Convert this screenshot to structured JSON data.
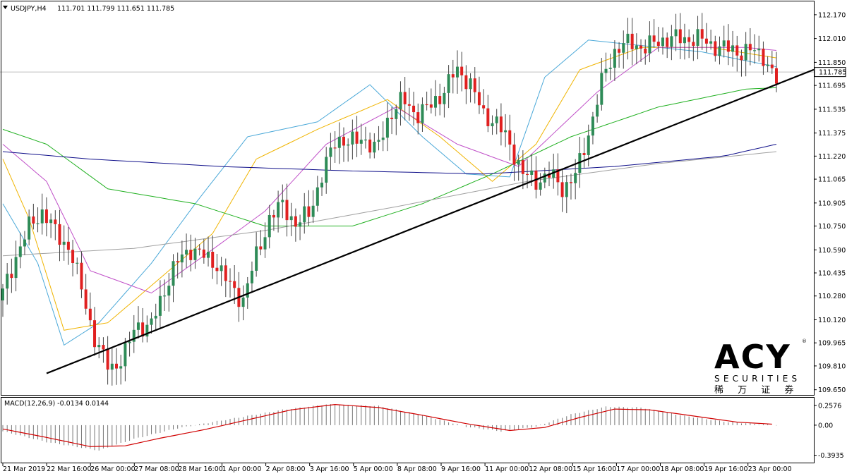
{
  "header": {
    "symbol": "USDJPY,H4",
    "ohlc": "111.701 111.799 111.651 111.785"
  },
  "macd": {
    "label": "MACD(12,26,9) -0.0134 0.0144",
    "ticks": [
      "0.2576",
      "0.00",
      "-0.3935"
    ]
  },
  "logo": {
    "brand": "ACY",
    "sub": "SECURITIES",
    "cn": "稀 万 证 券",
    "reg": "®",
    "brand_color": "#16255c"
  },
  "current_price": "111.785",
  "colors": {
    "bull": "#2e8b57",
    "bear": "#e02020",
    "ma5": "#4aa8d8",
    "ma10": "#f0b400",
    "ma20": "#c050c8",
    "ma60": "#20b020",
    "ma120": "#10108a",
    "ma200": "#a0a0a0",
    "macd_signal": "#d00000",
    "trendline": "#000000"
  },
  "chart_data": {
    "type": "candlestick",
    "symbol": "USDJPY",
    "timeframe": "H4",
    "y_ticks": [
      "112.170",
      "112.010",
      "111.850",
      "111.695",
      "111.535",
      "111.375",
      "111.220",
      "111.065",
      "110.905",
      "110.750",
      "110.590",
      "110.435",
      "110.280",
      "110.120",
      "109.965",
      "109.810",
      "109.650"
    ],
    "ylim": [
      109.62,
      112.25
    ],
    "x_ticks": [
      "21 Mar 2019",
      "22 Mar 16:00",
      "26 Mar 00:00",
      "27 Mar 08:00",
      "28 Mar 16:00",
      "1 Apr 00:00",
      "2 Apr 08:00",
      "3 Apr 16:00",
      "5 Apr 00:00",
      "8 Apr 08:00",
      "9 Apr 16:00",
      "11 Apr 00:00",
      "12 Apr 08:00",
      "15 Apr 16:00",
      "17 Apr 00:00",
      "18 Apr 08:00",
      "19 Apr 16:00",
      "23 Apr 00:00"
    ],
    "close_path": [
      110.3,
      110.55,
      110.75,
      110.85,
      110.7,
      110.6,
      110.3,
      109.95,
      109.8,
      109.85,
      110.1,
      110.05,
      110.3,
      110.5,
      110.6,
      110.55,
      110.5,
      110.35,
      110.25,
      110.55,
      110.8,
      110.9,
      110.75,
      110.85,
      111.1,
      111.35,
      111.3,
      111.35,
      111.25,
      111.5,
      111.6,
      111.5,
      111.55,
      111.65,
      111.8,
      111.72,
      111.5,
      111.45,
      111.3,
      111.1,
      111.05,
      111.1,
      111.0,
      111.1,
      111.4,
      111.75,
      111.95,
      111.98,
      111.95,
      111.98,
      112.02,
      112.0,
      112.02,
      111.97,
      111.95,
      111.92,
      111.93,
      111.9,
      111.72
    ],
    "candle_count": 178,
    "trendline": [
      [
        0,
        109.76
      ],
      [
        177,
        111.73
      ]
    ],
    "moving_averages": [
      {
        "color": "ma5",
        "points": [
          [
            0,
            110.9
          ],
          [
            8,
            110.5
          ],
          [
            14,
            109.95
          ],
          [
            22,
            110.1
          ],
          [
            34,
            110.5
          ],
          [
            44,
            110.9
          ],
          [
            56,
            111.35
          ],
          [
            72,
            111.45
          ],
          [
            84,
            111.7
          ],
          [
            96,
            111.35
          ],
          [
            106,
            111.1
          ],
          [
            116,
            111.08
          ],
          [
            124,
            111.75
          ],
          [
            134,
            112.0
          ],
          [
            160,
            111.92
          ],
          [
            177,
            111.82
          ]
        ]
      },
      {
        "color": "ma10",
        "points": [
          [
            0,
            111.2
          ],
          [
            6,
            110.8
          ],
          [
            14,
            110.05
          ],
          [
            24,
            110.1
          ],
          [
            36,
            110.4
          ],
          [
            48,
            110.7
          ],
          [
            58,
            111.2
          ],
          [
            72,
            111.4
          ],
          [
            88,
            111.6
          ],
          [
            100,
            111.35
          ],
          [
            112,
            111.05
          ],
          [
            122,
            111.3
          ],
          [
            132,
            111.8
          ],
          [
            146,
            111.95
          ],
          [
            162,
            111.95
          ],
          [
            177,
            111.88
          ]
        ]
      },
      {
        "color": "ma20",
        "points": [
          [
            0,
            111.3
          ],
          [
            10,
            111.05
          ],
          [
            20,
            110.45
          ],
          [
            34,
            110.3
          ],
          [
            46,
            110.55
          ],
          [
            60,
            110.85
          ],
          [
            74,
            111.3
          ],
          [
            90,
            111.55
          ],
          [
            104,
            111.3
          ],
          [
            118,
            111.15
          ],
          [
            136,
            111.65
          ],
          [
            150,
            111.95
          ],
          [
            170,
            111.95
          ],
          [
            177,
            111.93
          ]
        ]
      },
      {
        "color": "ma60",
        "points": [
          [
            0,
            111.4
          ],
          [
            10,
            111.3
          ],
          [
            24,
            111.0
          ],
          [
            44,
            110.9
          ],
          [
            60,
            110.75
          ],
          [
            80,
            110.75
          ],
          [
            96,
            110.9
          ],
          [
            112,
            111.1
          ],
          [
            130,
            111.35
          ],
          [
            150,
            111.55
          ],
          [
            170,
            111.67
          ],
          [
            177,
            111.68
          ]
        ]
      },
      {
        "color": "ma120",
        "points": [
          [
            0,
            111.25
          ],
          [
            20,
            111.2
          ],
          [
            50,
            111.15
          ],
          [
            80,
            111.12
          ],
          [
            110,
            111.1
          ],
          [
            140,
            111.15
          ],
          [
            165,
            111.22
          ],
          [
            177,
            111.3
          ]
        ]
      },
      {
        "color": "ma200",
        "points": [
          [
            0,
            110.55
          ],
          [
            30,
            110.6
          ],
          [
            60,
            110.72
          ],
          [
            90,
            110.88
          ],
          [
            120,
            111.05
          ],
          [
            150,
            111.17
          ],
          [
            177,
            111.25
          ]
        ]
      }
    ],
    "macd": {
      "ylim": [
        -0.48,
        0.34
      ],
      "histogram_path": [
        [
          0,
          -0.08
        ],
        [
          10,
          -0.22
        ],
        [
          22,
          -0.33
        ],
        [
          30,
          -0.18
        ],
        [
          40,
          -0.04
        ],
        [
          52,
          0.08
        ],
        [
          64,
          0.2
        ],
        [
          74,
          0.27
        ],
        [
          86,
          0.25
        ],
        [
          96,
          0.13
        ],
        [
          106,
          -0.02
        ],
        [
          114,
          -0.08
        ],
        [
          122,
          -0.02
        ],
        [
          130,
          0.14
        ],
        [
          138,
          0.24
        ],
        [
          146,
          0.23
        ],
        [
          156,
          0.12
        ],
        [
          166,
          0.04
        ],
        [
          177,
          0.0
        ]
      ],
      "signal_path": [
        [
          0,
          -0.05
        ],
        [
          10,
          -0.16
        ],
        [
          20,
          -0.28
        ],
        [
          28,
          -0.27
        ],
        [
          36,
          -0.17
        ],
        [
          46,
          -0.06
        ],
        [
          56,
          0.07
        ],
        [
          66,
          0.2
        ],
        [
          76,
          0.27
        ],
        [
          86,
          0.23
        ],
        [
          96,
          0.13
        ],
        [
          106,
          0.02
        ],
        [
          116,
          -0.07
        ],
        [
          124,
          -0.03
        ],
        [
          132,
          0.1
        ],
        [
          140,
          0.21
        ],
        [
          148,
          0.2
        ],
        [
          158,
          0.12
        ],
        [
          168,
          0.04
        ],
        [
          177,
          0.01
        ]
      ]
    }
  }
}
